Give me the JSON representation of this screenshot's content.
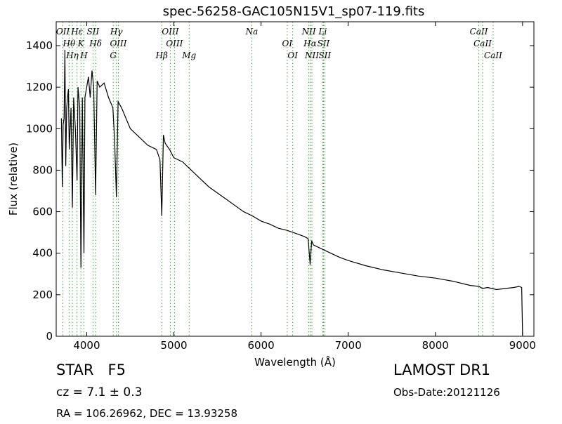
{
  "chart_data": {
    "type": "line",
    "title": "spec-56258-GAC105N15V1_sp07-119.fits",
    "x_label": "Wavelength (Å)",
    "y_label": "Flux (relative)",
    "xlim": [
      3650,
      9130
    ],
    "ylim": [
      0,
      1515
    ],
    "xticks": [
      4000,
      5000,
      6000,
      7000,
      8000,
      9000
    ],
    "yticks": [
      0,
      200,
      400,
      600,
      800,
      1000,
      1200,
      1400
    ],
    "series": [
      {
        "color": "#000000",
        "x": [
          3710,
          3720,
          3730,
          3740,
          3750,
          3760,
          3770,
          3780,
          3790,
          3800,
          3820,
          3835,
          3850,
          3870,
          3889,
          3900,
          3920,
          3934,
          3950,
          3968,
          3980,
          4000,
          4020,
          4040,
          4060,
          4080,
          4102,
          4120,
          4150,
          4200,
          4250,
          4300,
          4320,
          4341,
          4360,
          4400,
          4450,
          4500,
          4600,
          4700,
          4800,
          4840,
          4861,
          4880,
          4900,
          4950,
          5000,
          5100,
          5200,
          5300,
          5400,
          5500,
          5600,
          5700,
          5800,
          5900,
          6000,
          6100,
          6200,
          6300,
          6400,
          6500,
          6540,
          6563,
          6580,
          6600,
          6700,
          6800,
          6900,
          7000,
          7200,
          7400,
          7600,
          7800,
          8000,
          8200,
          8400,
          8500,
          8540,
          8600,
          8700,
          8800,
          8900,
          8960,
          8990,
          9000
        ],
        "values": [
          1050,
          720,
          1020,
          1050,
          1380,
          820,
          1100,
          1150,
          1190,
          900,
          1100,
          620,
          1150,
          1000,
          750,
          1200,
          1100,
          330,
          1150,
          400,
          1150,
          1200,
          1250,
          1150,
          1280,
          1200,
          680,
          1230,
          1200,
          1220,
          1150,
          1100,
          950,
          670,
          1130,
          1100,
          1050,
          1000,
          960,
          920,
          900,
          850,
          580,
          970,
          930,
          900,
          860,
          840,
          800,
          760,
          720,
          690,
          660,
          630,
          600,
          580,
          555,
          540,
          520,
          510,
          495,
          480,
          470,
          345,
          460,
          440,
          420,
          400,
          380,
          365,
          340,
          320,
          305,
          290,
          280,
          265,
          245,
          240,
          230,
          235,
          225,
          230,
          235,
          240,
          235,
          5
        ]
      }
    ],
    "line_color": "#33aa33",
    "lines": [
      {
        "x": 3727,
        "label": "OII"
      },
      {
        "x": 3798,
        "label": "Hθ"
      },
      {
        "x": 3835,
        "label": "Hη"
      },
      {
        "x": 3889,
        "label": "Hε"
      },
      {
        "x": 3934,
        "label": "K"
      },
      {
        "x": 3968,
        "label": "H"
      },
      {
        "x": 4072,
        "label": "SII"
      },
      {
        "x": 4102,
        "label": "Hδ"
      },
      {
        "x": 4304,
        "label": "G"
      },
      {
        "x": 4341,
        "label": "Hγ"
      },
      {
        "x": 4363,
        "label": "OIII"
      },
      {
        "x": 4861,
        "label": "Hβ"
      },
      {
        "x": 4959,
        "label": "OIII"
      },
      {
        "x": 5007,
        "label": "OIII"
      },
      {
        "x": 5175,
        "label": "Mg"
      },
      {
        "x": 5894,
        "label": "Na"
      },
      {
        "x": 6300,
        "label": "OI"
      },
      {
        "x": 6363,
        "label": "OI"
      },
      {
        "x": 6548,
        "label": "NII"
      },
      {
        "x": 6563,
        "label": "Hα"
      },
      {
        "x": 6583,
        "label": "NII"
      },
      {
        "x": 6708,
        "label": "Li"
      },
      {
        "x": 6716,
        "label": "SII"
      },
      {
        "x": 6731,
        "label": "SII"
      },
      {
        "x": 8498,
        "label": "CaII"
      },
      {
        "x": 8542,
        "label": "CaII"
      },
      {
        "x": 8662,
        "label": "CaII"
      }
    ],
    "annotations": [
      "STAR   F5",
      "cz = 7.1 ± 0.3",
      "RA = 106.26962, DEC = 13.93258",
      "LAMOST DR1",
      "Obs-Date:20121126"
    ]
  }
}
